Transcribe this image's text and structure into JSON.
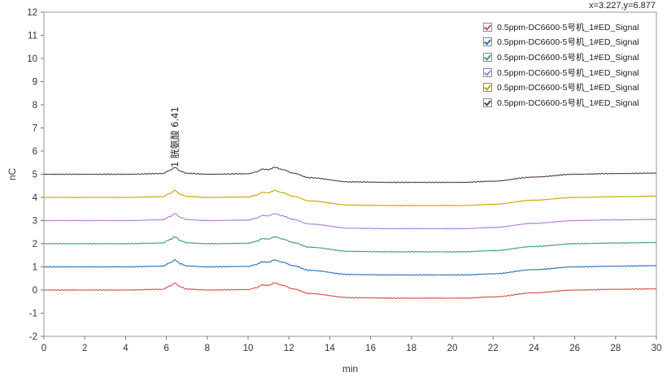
{
  "coordinate_readout": "x=3.227,y=6.877",
  "chart_data": {
    "type": "line",
    "title": "",
    "xlabel": "min",
    "ylabel": "nC",
    "xlim": [
      0,
      30
    ],
    "ylim": [
      -2,
      12
    ],
    "x_ticks": [
      "0",
      "2",
      "4",
      "6",
      "8",
      "10",
      "12",
      "14",
      "16",
      "18",
      "20",
      "22",
      "24",
      "26",
      "28",
      "30"
    ],
    "y_ticks": [
      "-2",
      "-1",
      "0",
      "1",
      "2",
      "3",
      "4",
      "5",
      "6",
      "7",
      "8",
      "9",
      "10",
      "11",
      "12"
    ],
    "annotation": {
      "text": "1 胱氨酸 6.41",
      "x": 6.41,
      "y": 5.3
    },
    "series": [
      {
        "name": "0.5ppm-DC6600-5号机_1#ED_Signal",
        "color": "#d94a4a",
        "offset": 0
      },
      {
        "name": "0.5ppm-DC6600-5号机_1#ED_Signal",
        "color": "#2a6fb5",
        "offset": 1
      },
      {
        "name": "0.5ppm-DC6600-5号机_1#ED_Signal",
        "color": "#3a9f6e",
        "offset": 2
      },
      {
        "name": "0.5ppm-DC6600-5号机_1#ED_Signal",
        "color": "#b07cd0",
        "offset": 3
      },
      {
        "name": "0.5ppm-DC6600-5号机_1#ED_Signal",
        "color": "#c4a800",
        "offset": 4
      },
      {
        "name": "0.5ppm-DC6600-5号机_1#ED_Signal",
        "color": "#5b3a4b",
        "offset": 5
      }
    ],
    "base_profile": {
      "x": [
        0,
        4,
        5.8,
        6.2,
        6.41,
        6.7,
        7.0,
        8,
        10,
        10.4,
        10.7,
        11.0,
        11.3,
        11.7,
        12.2,
        13.0,
        15.0,
        17.0,
        19.0,
        20.5,
        22.0,
        24.0,
        26.0,
        28.0,
        30.0
      ],
      "y": [
        0.0,
        0.0,
        0.03,
        0.18,
        0.3,
        0.13,
        0.04,
        0.0,
        0.02,
        0.1,
        0.22,
        0.2,
        0.3,
        0.2,
        0.05,
        -0.15,
        -0.33,
        -0.35,
        -0.35,
        -0.35,
        -0.3,
        -0.12,
        0.0,
        0.03,
        0.05
      ]
    }
  }
}
